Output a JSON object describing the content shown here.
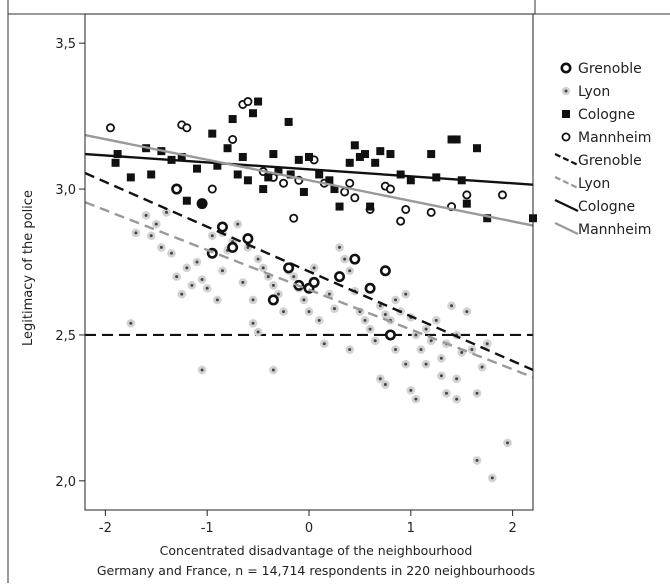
{
  "chart_data": {
    "type": "scatter",
    "title": "",
    "xlabel": "Concentrated disadvantage of the neighbourhood",
    "caption": "Germany and France, n = 14,714 respondents in 220 neighbourhoods",
    "ylabel": "Legitimacy of the police",
    "xlim": [
      -2.2,
      2.2
    ],
    "ylim": [
      1.9,
      3.6
    ],
    "x_ticks": [
      -2,
      -1,
      0,
      1,
      2
    ],
    "x_tick_labels": [
      "-2",
      "-1",
      "0",
      "1",
      "2"
    ],
    "y_ticks": [
      2.0,
      2.5,
      3.0,
      3.5
    ],
    "y_tick_labels": [
      "2,0",
      "2,5",
      "3,0",
      "3,5"
    ],
    "grid": false,
    "legend_position": "right",
    "reference_line": {
      "y": 2.5,
      "style": "dashed",
      "color": "#111111"
    },
    "colors": {
      "dark": "#111111",
      "gray": "#999999",
      "light_fill": "#d6d6d6"
    },
    "legend": [
      {
        "label": "Grenoble",
        "kind": "marker",
        "marker": "ring-thick"
      },
      {
        "label": "Lyon",
        "kind": "marker",
        "marker": "gray-dot"
      },
      {
        "label": "Cologne",
        "kind": "marker",
        "marker": "square"
      },
      {
        "label": "Mannheim",
        "kind": "marker",
        "marker": "ring-thin"
      },
      {
        "label": "Grenoble",
        "kind": "line",
        "color": "#111111",
        "dashed": true
      },
      {
        "label": "Lyon",
        "kind": "line",
        "color": "#999999",
        "dashed": true
      },
      {
        "label": "Cologne",
        "kind": "line",
        "color": "#111111",
        "dashed": false
      },
      {
        "label": "Mannheim",
        "kind": "line",
        "color": "#999999",
        "dashed": false
      }
    ],
    "fit_lines": [
      {
        "name": "Grenoble",
        "color": "#111111",
        "dashed": true,
        "x": [
          -2.2,
          2.2
        ],
        "y": [
          3.055,
          2.38
        ]
      },
      {
        "name": "Lyon",
        "color": "#999999",
        "dashed": true,
        "x": [
          -2.2,
          2.2
        ],
        "y": [
          2.955,
          2.355
        ]
      },
      {
        "name": "Cologne",
        "color": "#111111",
        "dashed": false,
        "x": [
          -2.2,
          2.2
        ],
        "y": [
          3.12,
          3.015
        ]
      },
      {
        "name": "Mannheim",
        "color": "#999999",
        "dashed": false,
        "x": [
          -2.2,
          2.2
        ],
        "y": [
          3.185,
          2.875
        ]
      }
    ],
    "series": [
      {
        "name": "Cologne",
        "marker": "square",
        "points": [
          [
            -1.9,
            3.09
          ],
          [
            -1.88,
            3.12
          ],
          [
            -1.75,
            3.04
          ],
          [
            -1.6,
            3.14
          ],
          [
            -1.55,
            3.05
          ],
          [
            -1.45,
            3.13
          ],
          [
            -1.35,
            3.1
          ],
          [
            -1.25,
            3.11
          ],
          [
            -1.2,
            2.96
          ],
          [
            -1.1,
            3.07
          ],
          [
            -1.05,
            2.95
          ],
          [
            -0.95,
            3.19
          ],
          [
            -0.9,
            3.08
          ],
          [
            -0.8,
            3.14
          ],
          [
            -0.75,
            3.24
          ],
          [
            -0.7,
            3.05
          ],
          [
            -0.65,
            3.11
          ],
          [
            -0.6,
            3.03
          ],
          [
            -0.55,
            3.26
          ],
          [
            -0.5,
            3.3
          ],
          [
            -0.45,
            3.0
          ],
          [
            -0.4,
            3.04
          ],
          [
            -0.35,
            3.12
          ],
          [
            -0.3,
            3.06
          ],
          [
            -0.2,
            3.23
          ],
          [
            -0.18,
            3.05
          ],
          [
            -0.1,
            3.1
          ],
          [
            -0.05,
            2.99
          ],
          [
            0.0,
            3.11
          ],
          [
            0.1,
            3.05
          ],
          [
            0.2,
            3.03
          ],
          [
            0.25,
            3.0
          ],
          [
            0.3,
            2.94
          ],
          [
            0.4,
            3.09
          ],
          [
            0.45,
            3.15
          ],
          [
            0.5,
            3.11
          ],
          [
            0.55,
            3.12
          ],
          [
            0.6,
            2.94
          ],
          [
            0.65,
            3.09
          ],
          [
            0.7,
            3.13
          ],
          [
            0.8,
            3.12
          ],
          [
            0.9,
            3.05
          ],
          [
            1.0,
            3.03
          ],
          [
            1.2,
            3.12
          ],
          [
            1.25,
            3.04
          ],
          [
            1.4,
            3.17
          ],
          [
            1.45,
            3.17
          ],
          [
            1.5,
            3.03
          ],
          [
            1.55,
            2.95
          ],
          [
            1.65,
            3.14
          ],
          [
            1.75,
            2.9
          ],
          [
            2.2,
            2.9
          ]
        ]
      },
      {
        "name": "Mannheim",
        "marker": "ring-thin",
        "points": [
          [
            -1.95,
            3.21
          ],
          [
            -1.25,
            3.22
          ],
          [
            -1.2,
            3.21
          ],
          [
            -0.95,
            3.0
          ],
          [
            -0.75,
            3.17
          ],
          [
            -0.65,
            3.29
          ],
          [
            -0.6,
            3.3
          ],
          [
            -0.45,
            3.06
          ],
          [
            -0.35,
            3.04
          ],
          [
            -0.25,
            3.02
          ],
          [
            -0.15,
            2.9
          ],
          [
            -0.1,
            3.03
          ],
          [
            0.05,
            3.1
          ],
          [
            0.15,
            3.02
          ],
          [
            0.35,
            2.99
          ],
          [
            0.4,
            3.02
          ],
          [
            0.45,
            2.97
          ],
          [
            0.6,
            2.93
          ],
          [
            0.75,
            3.01
          ],
          [
            0.8,
            3.0
          ],
          [
            0.9,
            2.89
          ],
          [
            0.95,
            2.93
          ],
          [
            1.2,
            2.92
          ],
          [
            1.4,
            2.94
          ],
          [
            1.55,
            2.98
          ],
          [
            1.9,
            2.98
          ]
        ]
      },
      {
        "name": "Grenoble",
        "marker": "ring-thick",
        "points": [
          [
            -1.3,
            3.0
          ],
          [
            -1.05,
            2.95
          ],
          [
            -0.95,
            2.78
          ],
          [
            -0.85,
            2.87
          ],
          [
            -0.75,
            2.8
          ],
          [
            -0.6,
            2.83
          ],
          [
            -0.35,
            2.62
          ],
          [
            -0.2,
            2.73
          ],
          [
            -0.1,
            2.67
          ],
          [
            0.0,
            2.66
          ],
          [
            0.05,
            2.68
          ],
          [
            0.3,
            2.7
          ],
          [
            0.45,
            2.76
          ],
          [
            0.6,
            2.66
          ],
          [
            0.75,
            2.72
          ],
          [
            0.8,
            2.5
          ]
        ]
      },
      {
        "name": "Lyon",
        "marker": "gray-dot",
        "points": [
          [
            -1.75,
            2.54
          ],
          [
            -1.7,
            2.85
          ],
          [
            -1.6,
            2.91
          ],
          [
            -1.55,
            2.84
          ],
          [
            -1.5,
            2.88
          ],
          [
            -1.45,
            2.8
          ],
          [
            -1.4,
            2.92
          ],
          [
            -1.35,
            2.78
          ],
          [
            -1.3,
            2.7
          ],
          [
            -1.25,
            2.64
          ],
          [
            -1.2,
            2.73
          ],
          [
            -1.15,
            2.67
          ],
          [
            -1.1,
            2.75
          ],
          [
            -1.05,
            2.69
          ],
          [
            -1.0,
            2.66
          ],
          [
            -0.95,
            2.84
          ],
          [
            -0.9,
            2.62
          ],
          [
            -0.85,
            2.85
          ],
          [
            -0.8,
            2.79
          ],
          [
            -0.75,
            2.82
          ],
          [
            -0.7,
            2.88
          ],
          [
            -0.65,
            2.68
          ],
          [
            -0.6,
            2.8
          ],
          [
            -0.55,
            2.62
          ],
          [
            -0.5,
            2.76
          ],
          [
            -0.45,
            2.73
          ],
          [
            -0.4,
            2.7
          ],
          [
            -0.35,
            2.67
          ],
          [
            -0.3,
            2.64
          ],
          [
            -0.25,
            2.58
          ],
          [
            -0.2,
            2.72
          ],
          [
            -0.15,
            2.7
          ],
          [
            -0.1,
            2.66
          ],
          [
            -0.05,
            2.62
          ],
          [
            0.0,
            2.58
          ],
          [
            0.05,
            2.73
          ],
          [
            0.1,
            2.55
          ],
          [
            0.15,
            2.47
          ],
          [
            0.2,
            2.64
          ],
          [
            0.25,
            2.59
          ],
          [
            0.3,
            2.8
          ],
          [
            0.35,
            2.76
          ],
          [
            0.4,
            2.72
          ],
          [
            0.45,
            2.65
          ],
          [
            0.5,
            2.58
          ],
          [
            0.55,
            2.55
          ],
          [
            0.6,
            2.52
          ],
          [
            0.65,
            2.48
          ],
          [
            0.7,
            2.6
          ],
          [
            0.75,
            2.57
          ],
          [
            0.8,
            2.55
          ],
          [
            0.85,
            2.62
          ],
          [
            0.9,
            2.58
          ],
          [
            0.95,
            2.64
          ],
          [
            1.0,
            2.56
          ],
          [
            1.05,
            2.5
          ],
          [
            1.1,
            2.45
          ],
          [
            1.15,
            2.52
          ],
          [
            1.2,
            2.48
          ],
          [
            1.25,
            2.55
          ],
          [
            1.3,
            2.42
          ],
          [
            1.35,
            2.47
          ],
          [
            1.4,
            2.6
          ],
          [
            1.45,
            2.5
          ],
          [
            1.5,
            2.44
          ],
          [
            1.55,
            2.58
          ],
          [
            1.6,
            2.45
          ],
          [
            1.65,
            2.07
          ],
          [
            1.7,
            2.39
          ],
          [
            1.75,
            2.47
          ],
          [
            1.8,
            2.01
          ],
          [
            1.95,
            2.13
          ],
          [
            -1.05,
            2.38
          ],
          [
            -0.35,
            2.38
          ],
          [
            0.7,
            2.35
          ],
          [
            0.75,
            2.33
          ],
          [
            0.95,
            2.4
          ],
          [
            1.0,
            2.31
          ],
          [
            1.05,
            2.28
          ],
          [
            1.35,
            2.3
          ],
          [
            1.45,
            2.28
          ],
          [
            1.65,
            2.3
          ],
          [
            -0.55,
            2.54
          ],
          [
            -0.5,
            2.51
          ],
          [
            0.4,
            2.45
          ],
          [
            1.3,
            2.36
          ],
          [
            0.85,
            2.45
          ],
          [
            1.15,
            2.4
          ],
          [
            1.45,
            2.35
          ],
          [
            -0.85,
            2.72
          ]
        ]
      }
    ]
  }
}
